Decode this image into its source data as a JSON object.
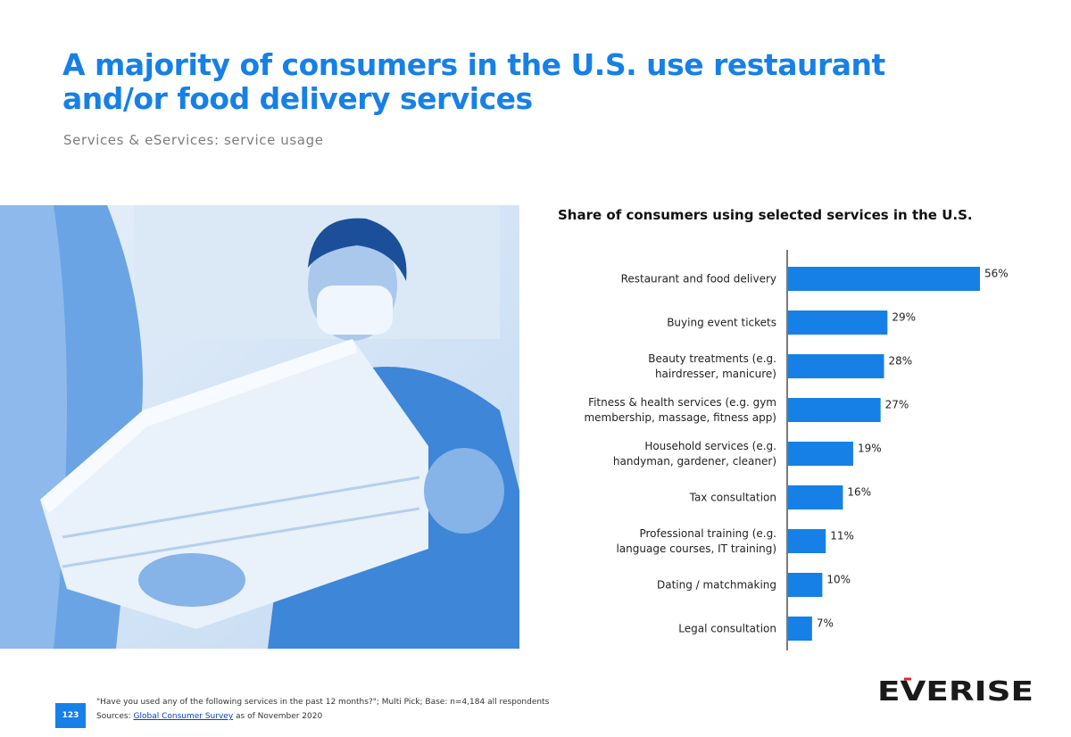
{
  "slide": {
    "title": "A majority of consumers in the U.S. use restaurant and/or food delivery services",
    "subtitle": "Services & eServices: service usage",
    "page_number": "123",
    "footer_question": "\"Have you used any of the following services in the past 12 months?\"; Multi Pick; Base: n=4,184 all respondents",
    "footer_sources_label": "Sources:",
    "footer_sources_link": "Global Consumer Survey",
    "footer_sources_suffix": "as of November 2020",
    "logo_text": "EVERISE"
  },
  "colors": {
    "accent": "#1680e6",
    "bar": "#1680e6"
  },
  "chart_data": {
    "type": "bar",
    "orientation": "horizontal",
    "title": "Share of consumers using selected services in the U.S.",
    "categories": [
      [
        "Restaurant and food delivery"
      ],
      [
        "Buying event tickets"
      ],
      [
        "Beauty treatments (e.g.",
        "hairdresser, manicure)"
      ],
      [
        "Fitness & health services (e.g. gym",
        "membership, massage, fitness app)"
      ],
      [
        "Household services (e.g.",
        "handyman, gardener, cleaner)"
      ],
      [
        "Tax consultation"
      ],
      [
        "Professional training (e.g.",
        "language courses, IT training)"
      ],
      [
        "Dating / matchmaking"
      ],
      [
        "Legal consultation"
      ]
    ],
    "values": [
      56,
      29,
      28,
      27,
      19,
      16,
      11,
      10,
      7
    ],
    "value_labels": [
      "56%",
      "29%",
      "28%",
      "27%",
      "19%",
      "16%",
      "11%",
      "10%",
      "7%"
    ],
    "unit": "%",
    "xlim": [
      0,
      56
    ]
  }
}
